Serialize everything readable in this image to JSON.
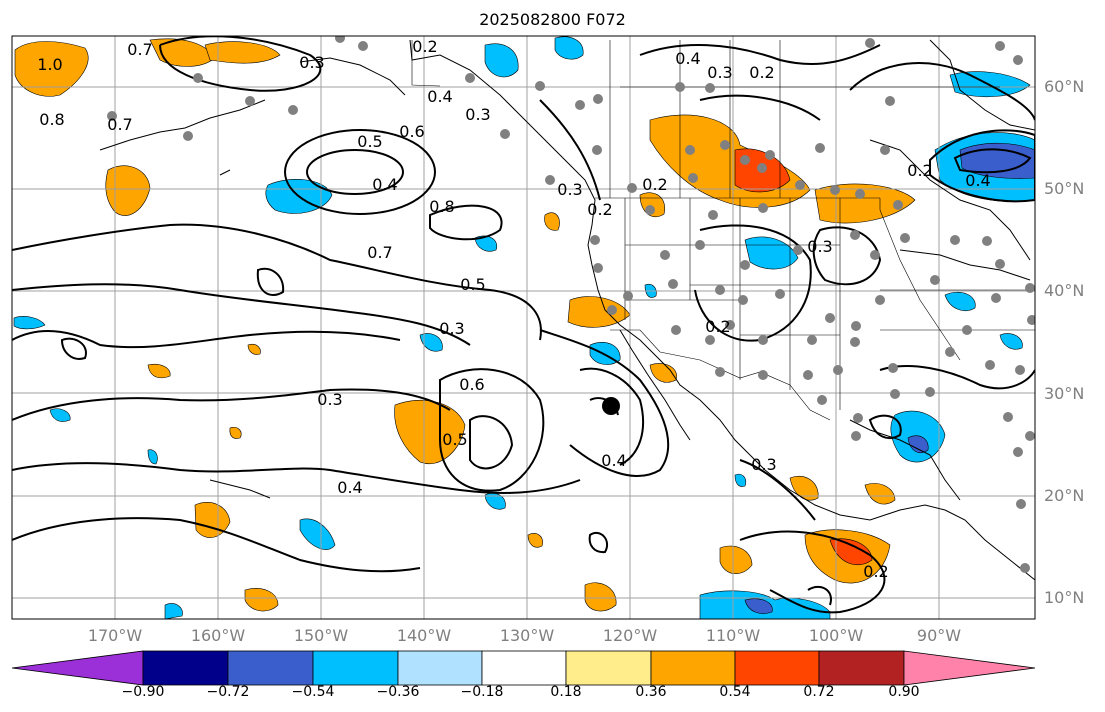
{
  "title": "2025082800 F072",
  "lat_labels": [
    "60°N",
    "50°N",
    "40°N",
    "30°N",
    "20°N",
    "10°N"
  ],
  "lon_labels": [
    "170°W",
    "160°W",
    "150°W",
    "140°W",
    "130°W",
    "120°W",
    "110°W",
    "100°W",
    "90°W"
  ],
  "colorbar": {
    "ticks": [
      "−0.90",
      "−0.72",
      "−0.54",
      "−0.36",
      "−0.18",
      "0.18",
      "0.36",
      "0.54",
      "0.72",
      "0.90"
    ],
    "colors": [
      "#9b30d9",
      "#00008b",
      "#3a5fcd",
      "#00bfff",
      "#b0e2ff",
      "#ffffff",
      "#ffec8b",
      "#ffa500",
      "#ff4500",
      "#b22222",
      "#ff82ab"
    ]
  },
  "contour_labels": [
    "1.0",
    "0.7",
    "0.8",
    "0.7",
    "0.3",
    "0.2",
    "0.4",
    "0.3",
    "0.2",
    "0.3",
    "0.5",
    "0.6",
    "0.4",
    "0.8",
    "0.7",
    "0.5",
    "0.3",
    "0.2",
    "0.4",
    "0.6",
    "0.5",
    "0.3",
    "0.4",
    "0.4",
    "0.3",
    "0.3",
    "0.2",
    "0.2",
    "0.3",
    "0.2",
    "0.4",
    "0.2"
  ],
  "marker": "storm-center"
}
